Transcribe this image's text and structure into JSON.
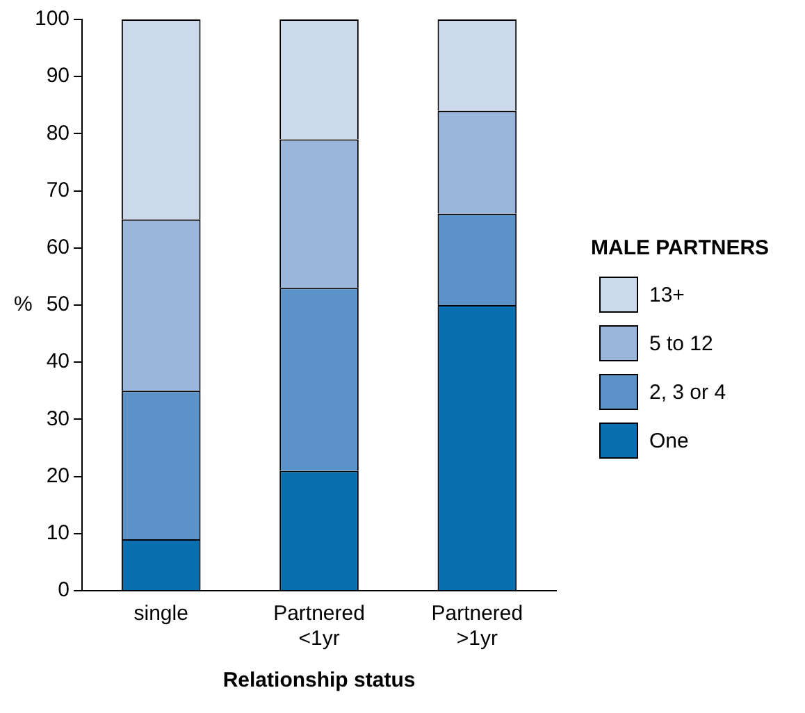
{
  "chart_data": {
    "type": "bar",
    "stacked": true,
    "xlabel": "Relationship status",
    "ylabel": "%",
    "legend_title": "MALE PARTNERS",
    "legend": "right",
    "categories": [
      "single",
      "Partnered\n<1yr",
      "Partnered\n>1yr"
    ],
    "series": [
      {
        "name": "One",
        "color": "#0a6fae",
        "values": [
          9,
          21,
          50
        ]
      },
      {
        "name": "2, 3 or 4",
        "color": "#5b93c9",
        "values": [
          26,
          32,
          16
        ]
      },
      {
        "name": "5 to 12",
        "color": "#9ab6db",
        "values": [
          30,
          26,
          18
        ]
      },
      {
        "name": "13+",
        "color": "#ccd9eb",
        "values": [
          35,
          21,
          16
        ]
      }
    ],
    "ylim": [
      0,
      100
    ],
    "yticks": [
      0,
      10,
      20,
      30,
      40,
      50,
      60,
      70,
      80,
      90,
      100
    ],
    "grid": false
  }
}
